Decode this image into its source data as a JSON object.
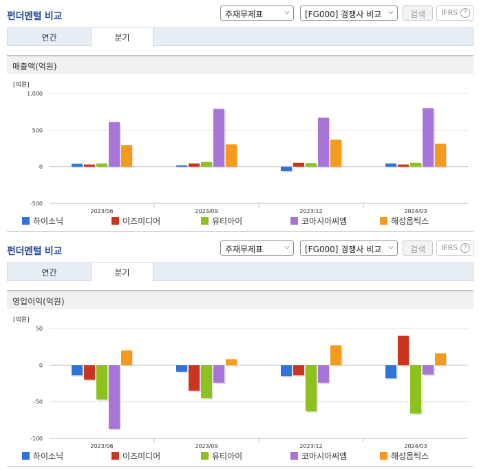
{
  "panels": [
    {
      "title": "펀더멘털 비교",
      "select_statement": "주재무제표",
      "select_compare": "[FG000] 경쟁사 비교",
      "search_label": "검색",
      "ifrs_label": "IFRS",
      "help_glyph": "?",
      "tabs": [
        {
          "label": "연간",
          "active": false
        },
        {
          "label": "분기",
          "active": true
        }
      ],
      "section_title": "매출액(억원)"
    },
    {
      "title": "펀더멘털 비교",
      "select_statement": "주재무제표",
      "select_compare": "[FG000] 경쟁사 비교",
      "search_label": "검색",
      "ifrs_label": "IFRS",
      "help_glyph": "?",
      "tabs": [
        {
          "label": "연간",
          "active": false
        },
        {
          "label": "분기",
          "active": true
        }
      ],
      "section_title": "영업이익(억원)"
    }
  ],
  "chart_data": [
    {
      "type": "bar",
      "unit_label": "[억원]",
      "categories": [
        "2023/06",
        "2023/09",
        "2023/12",
        "2024/03"
      ],
      "ylim": [
        -500,
        1000
      ],
      "yticks": [
        -500,
        0,
        500,
        1000
      ],
      "ytick_labels": [
        "-500",
        "0",
        "500",
        "1,000"
      ],
      "grid": true,
      "legend_position": "bottom",
      "series": [
        {
          "name": "하이소닉",
          "color": "#2f73d8",
          "values": [
            40,
            20,
            -60,
            45
          ]
        },
        {
          "name": "이즈미디어",
          "color": "#c9361d",
          "values": [
            30,
            45,
            55,
            30
          ]
        },
        {
          "name": "유티아이",
          "color": "#8cc11e",
          "values": [
            45,
            65,
            50,
            55
          ]
        },
        {
          "name": "코아시아씨엠",
          "color": "#a874d8",
          "values": [
            610,
            790,
            670,
            800
          ]
        },
        {
          "name": "해성옵틱스",
          "color": "#f59a1c",
          "values": [
            295,
            305,
            370,
            315
          ]
        }
      ]
    },
    {
      "type": "bar",
      "unit_label": "[억원]",
      "categories": [
        "2023/06",
        "2023/09",
        "2023/12",
        "2024/03"
      ],
      "ylim": [
        -100,
        50
      ],
      "yticks": [
        -100,
        -50,
        0,
        50
      ],
      "ytick_labels": [
        "-100",
        "-50",
        "0",
        "50"
      ],
      "grid": true,
      "legend_position": "bottom",
      "series": [
        {
          "name": "하이소닉",
          "color": "#2f73d8",
          "values": [
            -14,
            -9,
            -15,
            -18
          ]
        },
        {
          "name": "이즈미디어",
          "color": "#c9361d",
          "values": [
            -20,
            -35,
            -14,
            40
          ]
        },
        {
          "name": "유티아이",
          "color": "#8cc11e",
          "values": [
            -47,
            -45,
            -63,
            -66
          ]
        },
        {
          "name": "코아시아씨엠",
          "color": "#a874d8",
          "values": [
            -87,
            -24,
            -24,
            -13
          ]
        },
        {
          "name": "해성옵틱스",
          "color": "#f59a1c",
          "values": [
            20,
            8,
            27,
            16
          ]
        }
      ]
    }
  ]
}
